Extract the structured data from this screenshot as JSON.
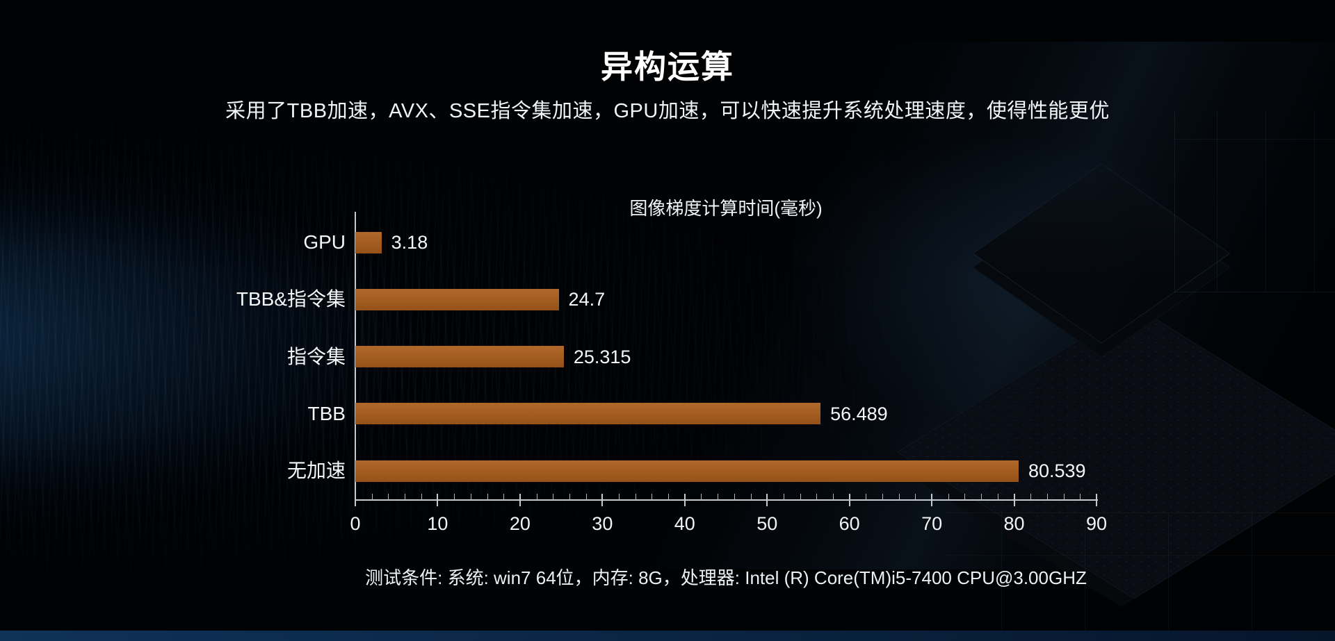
{
  "slide": {
    "title": "异构运算",
    "subtitle": "采用了TBB加速，AVX、SSE指令集加速，GPU加速，可以快速提升系统处理速度，使得性能更优",
    "footer": "测试条件: 系统: win7 64位，内存: 8G，处理器: Intel (R) Core(TM)i5-7400 CPU@3.00GHZ"
  },
  "chart_data": {
    "type": "bar",
    "orientation": "horizontal",
    "title": "图像梯度计算时间(毫秒)",
    "categories": [
      "GPU",
      "TBB&指令集",
      "指令集",
      "TBB",
      "无加速"
    ],
    "values": [
      3.18,
      24.7,
      25.315,
      56.489,
      80.539
    ],
    "value_labels": [
      "3.18",
      "24.7",
      "25.315",
      "56.489",
      "80.539"
    ],
    "xlabel": "",
    "ylabel": "",
    "xlim": [
      0,
      90
    ],
    "x_ticks": [
      0,
      10,
      20,
      30,
      40,
      50,
      60,
      70,
      80,
      90
    ],
    "minor_tick_step": 2,
    "grid": false,
    "legend": "none",
    "bar_color_top": "#b0692a",
    "bar_color_bottom": "#94511a",
    "axis_color": "#c6cbd0",
    "text_color": "#f5f7f9"
  }
}
